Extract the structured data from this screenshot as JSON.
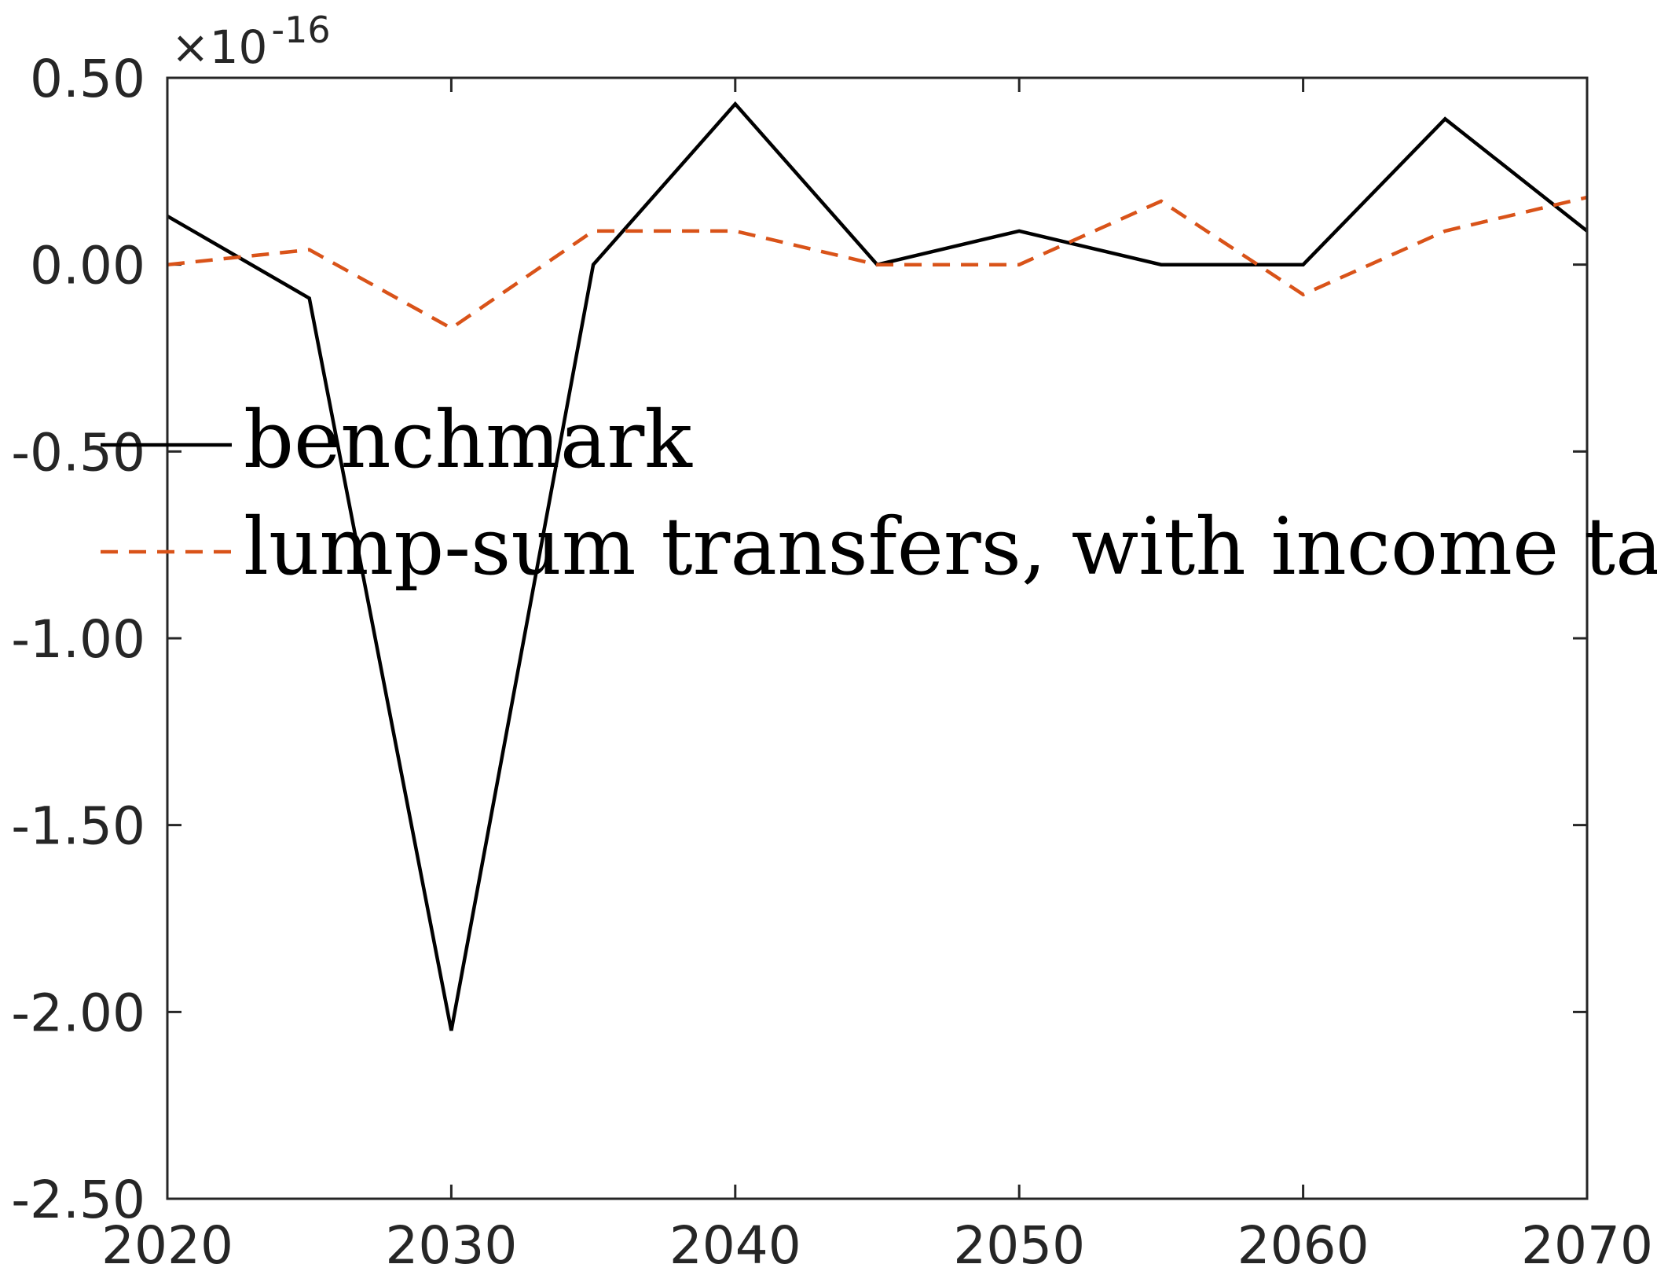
{
  "chart_data": {
    "type": "line",
    "title": "",
    "xlabel": "",
    "ylabel": "",
    "xlim": [
      2020,
      2070
    ],
    "ylim": [
      -2.5,
      0.5
    ],
    "y_exponent_label": {
      "base": "×10",
      "exponent": "-16"
    },
    "x_ticks": [
      2020,
      2030,
      2040,
      2050,
      2060,
      2070
    ],
    "x_tick_labels": [
      "2020",
      "2030",
      "2040",
      "2050",
      "2060",
      "2070"
    ],
    "y_ticks": [
      0.5,
      0.0,
      -0.5,
      -1.0,
      -1.5,
      -2.0,
      -2.5
    ],
    "y_tick_labels": [
      "0.50",
      "0.00",
      "-0.50",
      "-1.00",
      "-1.50",
      "-2.00",
      "-2.50"
    ],
    "grid": false,
    "legend_position": "middle-left",
    "x": [
      2020,
      2025,
      2030,
      2035,
      2040,
      2045,
      2050,
      2055,
      2060,
      2065,
      2070
    ],
    "series": [
      {
        "name": "benchmark",
        "color": "#000000",
        "style": "solid",
        "values": [
          0.13,
          -0.09,
          -2.05,
          0.0,
          0.43,
          0.0,
          0.09,
          0.0,
          0.0,
          0.39,
          0.09
        ]
      },
      {
        "name": "lump-sum transfers, with income tax",
        "color": "#D95319",
        "style": "dashed",
        "values": [
          0.0,
          0.04,
          -0.17,
          0.09,
          0.09,
          0.0,
          0.0,
          0.17,
          -0.08,
          0.09,
          0.18
        ]
      }
    ]
  }
}
